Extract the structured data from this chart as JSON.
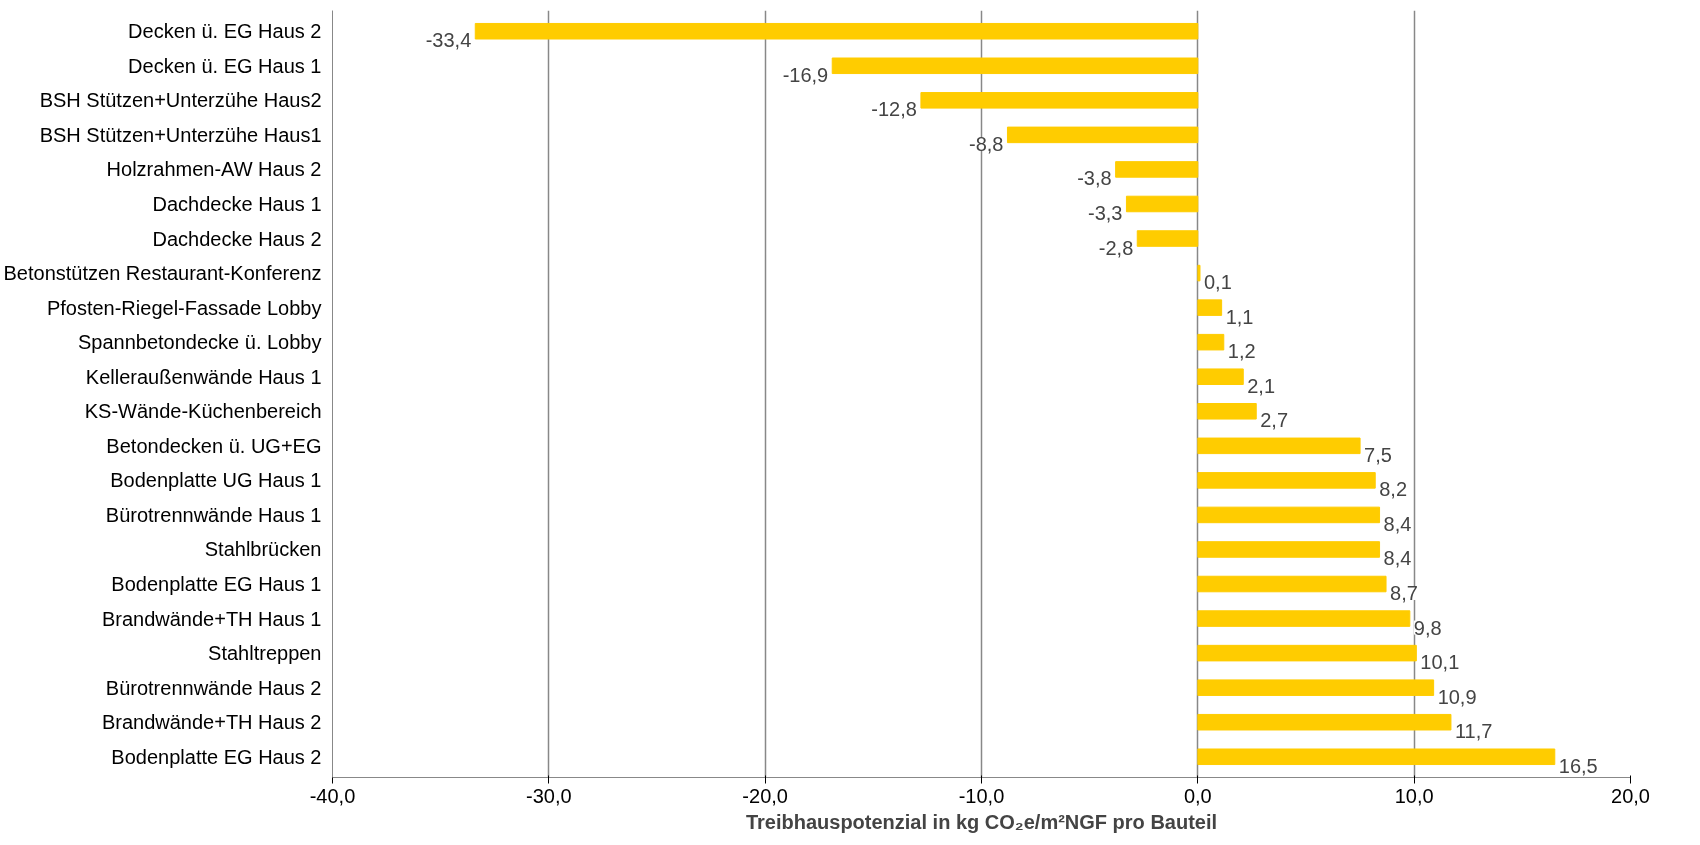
{
  "chart_data": {
    "type": "bar",
    "orientation": "horizontal",
    "xlabel": "Treibhauspotenzial in kg CO₂e/m²NGF pro Bauteil",
    "categories": [
      "Decken ü. EG Haus 2",
      "Decken ü. EG Haus 1",
      "BSH Stützen+Unterzühe Haus2",
      "BSH Stützen+Unterzühe Haus1",
      "Holzrahmen-AW Haus 2",
      "Dachdecke Haus 1",
      "Dachdecke Haus 2",
      "Betonstützen Restaurant-Konferenz",
      "Pfosten-Riegel-Fassade Lobby",
      "Spannbetondecke ü. Lobby",
      "Kelleraußenwände Haus 1",
      "KS-Wände-Küchenbereich",
      "Betondecken ü. UG+EG",
      "Bodenplatte UG Haus 1",
      "Bürotrennwände Haus 1",
      "Stahlbrücken",
      "Bodenplatte EG Haus 1",
      "Brandwände+TH Haus 1",
      "Stahltreppen",
      "Bürotrennwände Haus 2",
      "Brandwände+TH Haus 2",
      "Bodenplatte EG Haus 2"
    ],
    "values": [
      -33.4,
      -16.9,
      -12.8,
      -8.8,
      -3.8,
      -3.3,
      -2.8,
      0.1,
      1.1,
      1.2,
      2.1,
      2.7,
      7.5,
      8.2,
      8.4,
      8.4,
      8.7,
      9.8,
      10.1,
      10.9,
      11.7,
      16.5
    ],
    "value_labels": [
      "-33,4",
      "-16,9",
      "-12,8",
      "-8,8",
      "-3,8",
      "-3,3",
      "-2,8",
      "0,1",
      "1,1",
      "1,2",
      "2,1",
      "2,7",
      "7,5",
      "8,2",
      "8,4",
      "8,4",
      "8,7",
      "9,8",
      "10,1",
      "10,9",
      "11,7",
      "16,5"
    ],
    "color": "#ffcc00",
    "xlim": [
      -40,
      20
    ],
    "xticks": [
      {
        "value": -40,
        "label": "-40,0"
      },
      {
        "value": -30,
        "label": "-30,0"
      },
      {
        "value": -20,
        "label": "-20,0"
      },
      {
        "value": -10,
        "label": "-10,0"
      },
      {
        "value": 0,
        "label": "0,0"
      },
      {
        "value": 10,
        "label": "10,0"
      },
      {
        "value": 20,
        "label": "20,0"
      }
    ],
    "grid": "x"
  }
}
